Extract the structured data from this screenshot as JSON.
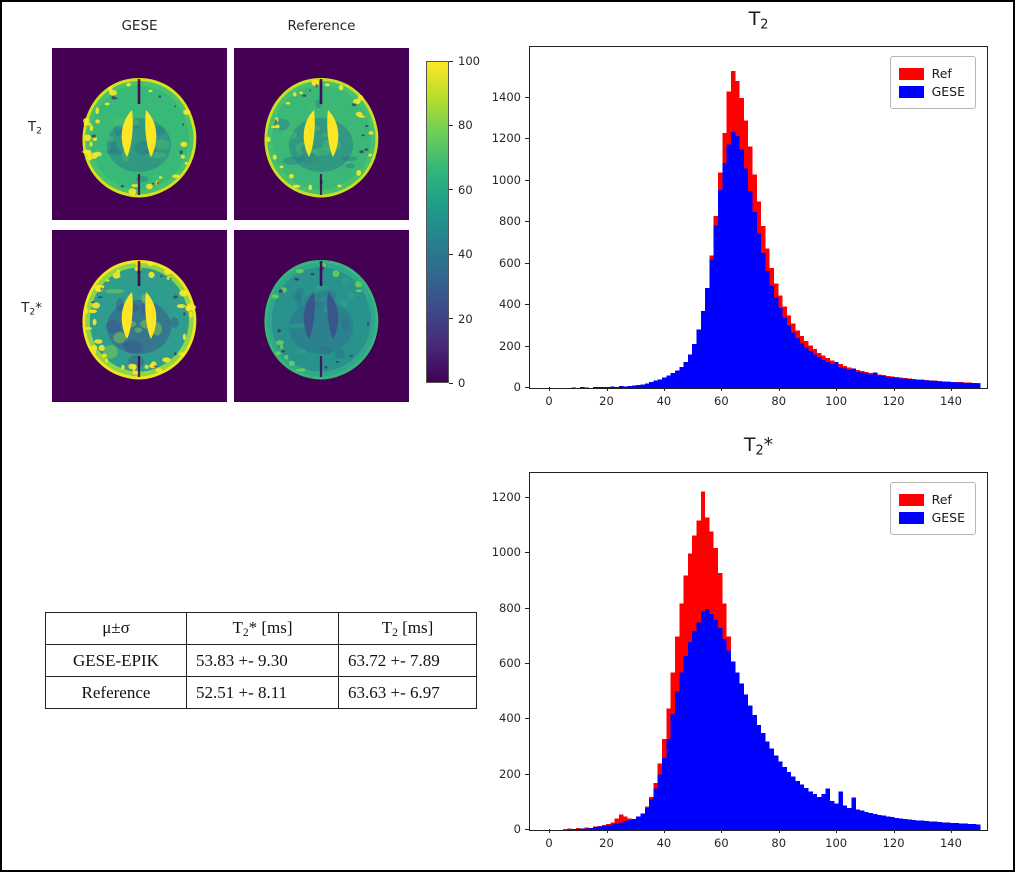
{
  "figure": {
    "background": "#ffffff",
    "border_color": "#000000"
  },
  "maps": {
    "col_headers": [
      "GESE",
      "Reference"
    ],
    "row_labels": [
      {
        "base": "T",
        "sub": "2",
        "post": ""
      },
      {
        "base": "T",
        "sub": "2",
        "post": "*"
      }
    ],
    "colorbar": {
      "min": 0,
      "max": 100,
      "ticks": [
        0,
        20,
        40,
        60,
        80,
        100
      ],
      "colormap": "viridis",
      "gradient_bottom_to_top": [
        "#440154",
        "#482878",
        "#3e4989",
        "#31688e",
        "#26828e",
        "#1f9e89",
        "#35b779",
        "#6ece58",
        "#b5de2b",
        "#fde725"
      ]
    },
    "panels": [
      {
        "row": "T2",
        "col": "GESE",
        "seed": 7,
        "palette": {
          "bg": "#440154",
          "rim": "#d4e21a",
          "cortex": "#4ac16d",
          "interior": "#38b977",
          "wm": "#2a788e",
          "vent": "#fde725",
          "speck": "#fde725",
          "speckN": 30
        }
      },
      {
        "row": "T2",
        "col": "Reference",
        "seed": 13,
        "palette": {
          "bg": "#440154",
          "rim": "#c8e020",
          "cortex": "#48c16e",
          "interior": "#3bb875",
          "wm": "#2a788e",
          "vent": "#fde725",
          "speck": "#fde725",
          "speckN": 24
        }
      },
      {
        "row": "T2*",
        "col": "GESE",
        "seed": 29,
        "palette": {
          "bg": "#440154",
          "rim": "#f1e51b",
          "cortex": "#8ed645",
          "interior": "#2f9d8d",
          "wm": "#3b528b",
          "vent": "#fde725",
          "speck": "#fde725",
          "speckN": 42
        }
      },
      {
        "row": "T2*",
        "col": "Reference",
        "seed": 41,
        "palette": {
          "bg": "#440154",
          "rim": "#35b779",
          "cortex": "#2fa78c",
          "interior": "#28928c",
          "wm": "#2e6f8e",
          "vent": "#39568c",
          "speck": "#6ece58",
          "speckN": 14
        }
      }
    ]
  },
  "table": {
    "headers": [
      {
        "pre": "μ±σ",
        "sub": "",
        "post": ""
      },
      {
        "pre": "T",
        "sub": "2",
        "post": "* [ms]"
      },
      {
        "pre": "T",
        "sub": "2",
        "post": " [ms]"
      }
    ],
    "rows": [
      [
        "GESE-EPIK",
        "53.83 +- 9.30",
        "63.72 +- 7.89"
      ],
      [
        "Reference",
        "52.51 +- 8.11",
        "63.63 +- 6.97"
      ]
    ]
  },
  "chart_data": [
    {
      "type": "histogram",
      "title": {
        "base": "T",
        "sub": "2",
        "post": ""
      },
      "xlabel": "",
      "ylabel": "",
      "xlim": [
        -7,
        152.2
      ],
      "ylim": [
        0,
        1645
      ],
      "x_ticks": [
        0,
        20,
        40,
        60,
        80,
        100,
        120,
        140
      ],
      "y_ticks": [
        0,
        200,
        400,
        600,
        800,
        1000,
        1200,
        1400
      ],
      "grid": false,
      "bin_start": 0,
      "bin_width": 1.5,
      "legend": {
        "position": "upper right",
        "entries": [
          {
            "label": "Ref",
            "color": "#ff0000"
          },
          {
            "label": "GESE",
            "color": "#0000ff"
          }
        ]
      },
      "series": [
        {
          "name": "Ref",
          "color": "#ff0000",
          "values": [
            0,
            0,
            0,
            0,
            0,
            2,
            0,
            3,
            2,
            0,
            4,
            3,
            5,
            4,
            6,
            5,
            7,
            6,
            9,
            10,
            13,
            15,
            19,
            24,
            30,
            36,
            44,
            53,
            64,
            78,
            92,
            115,
            150,
            200,
            268,
            358,
            470,
            640,
            830,
            1040,
            1230,
            1430,
            1530,
            1480,
            1400,
            1290,
            1165,
            1030,
            900,
            782,
            672,
            580,
            505,
            446,
            392,
            350,
            311,
            278,
            250,
            226,
            205,
            188,
            170,
            157,
            144,
            133,
            123,
            115,
            106,
            99,
            93,
            88,
            82,
            77,
            73,
            69,
            66,
            62,
            59,
            56,
            53,
            51,
            48,
            46,
            44,
            42,
            40,
            39,
            37,
            35,
            34,
            32,
            31,
            30,
            29,
            28,
            27,
            26,
            25,
            24
          ]
        },
        {
          "name": "GESE",
          "color": "#0000ff",
          "values": [
            0,
            0,
            0,
            0,
            0,
            3,
            0,
            4,
            3,
            0,
            5,
            4,
            6,
            5,
            8,
            6,
            9,
            8,
            10,
            12,
            15,
            18,
            22,
            28,
            35,
            42,
            50,
            60,
            72,
            85,
            102,
            126,
            162,
            212,
            282,
            372,
            482,
            620,
            785,
            955,
            1085,
            1175,
            1235,
            1215,
            1150,
            1060,
            950,
            848,
            745,
            652,
            565,
            495,
            437,
            385,
            341,
            301,
            268,
            241,
            215,
            196,
            178,
            162,
            149,
            136,
            126,
            117,
            125,
            100,
            94,
            88,
            95,
            78,
            74,
            70,
            66,
            75,
            60,
            57,
            54,
            52,
            49,
            47,
            45,
            43,
            41,
            39,
            38,
            36,
            35,
            33,
            32,
            31,
            30,
            28,
            27,
            26,
            25,
            24,
            23,
            22
          ]
        }
      ]
    },
    {
      "type": "histogram",
      "title": {
        "base": "T",
        "sub": "2",
        "post": "*"
      },
      "xlabel": "",
      "ylabel": "",
      "xlim": [
        -7,
        152.2
      ],
      "ylim": [
        0,
        1291
      ],
      "x_ticks": [
        0,
        20,
        40,
        60,
        80,
        100,
        120,
        140
      ],
      "y_ticks": [
        0,
        200,
        400,
        600,
        800,
        1000,
        1200
      ],
      "grid": false,
      "bin_start": 0,
      "bin_width": 1.5,
      "legend": {
        "position": "upper right",
        "entries": [
          {
            "label": "Ref",
            "color": "#ff0000"
          },
          {
            "label": "GESE",
            "color": "#0000ff"
          }
        ]
      },
      "series": [
        {
          "name": "Ref",
          "color": "#ff0000",
          "values": [
            0,
            0,
            0,
            3,
            5,
            4,
            7,
            6,
            9,
            8,
            12,
            14,
            18,
            22,
            28,
            42,
            56,
            48,
            42,
            38,
            46,
            60,
            85,
            120,
            170,
            240,
            330,
            440,
            570,
            700,
            820,
            920,
            1000,
            1065,
            1120,
            1225,
            1130,
            1080,
            1020,
            930,
            820,
            700,
            580,
            470,
            380,
            310,
            255,
            215,
            185,
            160,
            140,
            124,
            110,
            99,
            90,
            82,
            75,
            69,
            64,
            59,
            55,
            51,
            48,
            45,
            42,
            40,
            38,
            36,
            34,
            32,
            31,
            29,
            28,
            27,
            26,
            25,
            24,
            23,
            22,
            21,
            20,
            19,
            18,
            17,
            17,
            16,
            16,
            15,
            15,
            14,
            14,
            13,
            13,
            12,
            12,
            11,
            11,
            10,
            10,
            10
          ]
        },
        {
          "name": "GESE",
          "color": "#0000ff",
          "values": [
            0,
            0,
            0,
            0,
            2,
            3,
            4,
            5,
            6,
            8,
            10,
            12,
            14,
            17,
            20,
            24,
            28,
            32,
            36,
            40,
            48,
            60,
            80,
            110,
            150,
            200,
            260,
            330,
            420,
            500,
            570,
            630,
            680,
            720,
            750,
            790,
            800,
            782,
            760,
            730,
            690,
            650,
            610,
            570,
            530,
            490,
            450,
            415,
            380,
            350,
            320,
            295,
            270,
            248,
            228,
            210,
            193,
            178,
            164,
            151,
            140,
            130,
            120,
            130,
            150,
            105,
            95,
            140,
            88,
            80,
            118,
            75,
            70,
            66,
            62,
            58,
            55,
            52,
            49,
            47,
            44,
            42,
            40,
            38,
            37,
            35,
            34,
            32,
            31,
            30,
            29,
            28,
            27,
            26,
            25,
            24,
            23,
            22,
            21,
            20
          ]
        }
      ]
    }
  ]
}
